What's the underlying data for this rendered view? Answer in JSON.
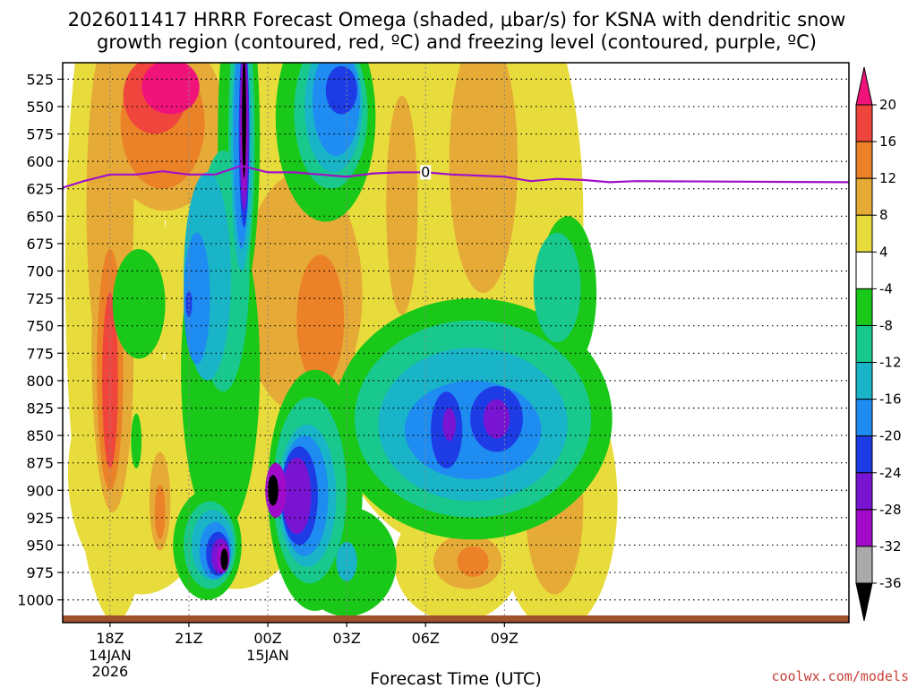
{
  "chart_data": {
    "type": "contour",
    "title_line1": "2026011417 HRRR Forecast Omega (shaded, μbar/s) for KSNA with dendritic snow",
    "title_line2": "growth region (contoured, red, ºC) and freezing level (contoured, purple, ºC)",
    "xlabel": "Forecast Time (UTC)",
    "credit": "coolwx.com/models",
    "x_range_hours": [
      -1.8,
      28.1
    ],
    "y_levels": [
      525,
      550,
      575,
      600,
      625,
      650,
      675,
      700,
      725,
      750,
      775,
      800,
      825,
      850,
      875,
      900,
      925,
      950,
      975,
      1000
    ],
    "y_range": [
      510,
      1015
    ],
    "x_ticks": [
      {
        "hour": 0,
        "label": "18Z",
        "sub1": "14JAN",
        "sub2": "2026"
      },
      {
        "hour": 3,
        "label": "21Z",
        "sub1": "",
        "sub2": ""
      },
      {
        "hour": 6,
        "label": "00Z",
        "sub1": "15JAN",
        "sub2": ""
      },
      {
        "hour": 9,
        "label": "03Z",
        "sub1": "",
        "sub2": ""
      },
      {
        "hour": 12,
        "label": "06Z",
        "sub1": "",
        "sub2": ""
      },
      {
        "hour": 15,
        "label": "09Z",
        "sub1": "",
        "sub2": ""
      }
    ],
    "colorbar": {
      "levels": [
        20,
        16,
        12,
        8,
        4,
        -4,
        -8,
        -12,
        -16,
        -20,
        -24,
        -28,
        -32,
        -36
      ],
      "colors": [
        "#f0147a",
        "#f0453c",
        "#eb8228",
        "#e6aa37",
        "#e8dc3c",
        "#ffffff",
        "#19c819",
        "#19c88c",
        "#19b4c8",
        "#1e8cf0",
        "#1e3ce6",
        "#7814d2",
        "#a00ac8",
        "#aaaaaa",
        "#000000"
      ]
    },
    "freezing_level": {
      "label": "0",
      "label_hour": 12,
      "points": [
        [
          -1.8,
          624
        ],
        [
          -1.0,
          618
        ],
        [
          0,
          612
        ],
        [
          1,
          612
        ],
        [
          2,
          609
        ],
        [
          3,
          612
        ],
        [
          4,
          612
        ],
        [
          5,
          604
        ],
        [
          6,
          610
        ],
        [
          7,
          610
        ],
        [
          8,
          612
        ],
        [
          9,
          614
        ],
        [
          10,
          611
        ],
        [
          11,
          610
        ],
        [
          12,
          610
        ],
        [
          13,
          612
        ],
        [
          14,
          613
        ],
        [
          15,
          614
        ],
        [
          16,
          618
        ],
        [
          17,
          616
        ],
        [
          18,
          617
        ],
        [
          19,
          619
        ],
        [
          20,
          618
        ],
        [
          28.1,
          619
        ]
      ]
    },
    "fields": [
      {
        "omega": 4,
        "hour": 0.2,
        "p": 700,
        "rh": 1.9,
        "rp": 320
      },
      {
        "omega": 4,
        "hour": 2.5,
        "p": 560,
        "rh": 3.4,
        "rp": 95
      },
      {
        "omega": 4,
        "hour": 6.4,
        "p": 720,
        "rh": 4.5,
        "rp": 210
      },
      {
        "omega": 4,
        "hour": 12.5,
        "p": 650,
        "rh": 5.5,
        "rp": 300
      },
      {
        "omega": 4,
        "hour": 1.2,
        "p": 885,
        "rh": 2.8,
        "rp": 110
      },
      {
        "omega": 4,
        "hour": 4.8,
        "p": 880,
        "rh": 3.0,
        "rp": 110
      },
      {
        "omega": 4,
        "hour": 17.0,
        "p": 910,
        "rh": 2.3,
        "rp": 120
      },
      {
        "omega": 4,
        "hour": 13.2,
        "p": 965,
        "rh": 2.4,
        "rp": 55
      },
      {
        "omega": 4,
        "hour": 8.5,
        "p": 560,
        "rh": 6.0,
        "rp": 120
      },
      {
        "omega": 8,
        "hour": 0.0,
        "p": 640,
        "rh": 0.9,
        "rp": 160
      },
      {
        "omega": 8,
        "hour": 0.1,
        "p": 770,
        "rh": 0.8,
        "rp": 150
      },
      {
        "omega": 8,
        "hour": 2.1,
        "p": 565,
        "rh": 2.3,
        "rp": 80
      },
      {
        "omega": 8,
        "hour": 7.3,
        "p": 720,
        "rh": 2.3,
        "rp": 110
      },
      {
        "omega": 8,
        "hour": 14.2,
        "p": 600,
        "rh": 1.3,
        "rp": 120
      },
      {
        "omega": 8,
        "hour": 11.1,
        "p": 640,
        "rh": 0.6,
        "rp": 100
      },
      {
        "omega": 8,
        "hour": 1.9,
        "p": 910,
        "rh": 0.4,
        "rp": 45
      },
      {
        "omega": 8,
        "hour": 4.8,
        "p": 795,
        "rh": 0.4,
        "rp": 60
      },
      {
        "omega": 8,
        "hour": 13.6,
        "p": 965,
        "rh": 1.3,
        "rp": 25
      },
      {
        "omega": 8,
        "hour": 16.9,
        "p": 915,
        "rh": 1.1,
        "rp": 80
      },
      {
        "omega": 12,
        "hour": 0.0,
        "p": 790,
        "rh": 0.5,
        "rp": 110
      },
      {
        "omega": 12,
        "hour": 2.0,
        "p": 565,
        "rh": 1.6,
        "rp": 60
      },
      {
        "omega": 12,
        "hour": 8.0,
        "p": 745,
        "rh": 0.9,
        "rp": 60
      },
      {
        "omega": 12,
        "hour": 1.9,
        "p": 920,
        "rh": 0.2,
        "rp": 25
      },
      {
        "omega": 12,
        "hour": 13.8,
        "p": 965,
        "rh": 0.6,
        "rp": 14
      },
      {
        "omega": 16,
        "hour": 0.0,
        "p": 800,
        "rh": 0.3,
        "rp": 80
      },
      {
        "omega": 16,
        "hour": 1.7,
        "p": 540,
        "rh": 1.2,
        "rp": 35
      },
      {
        "omega": 20,
        "hour": 2.3,
        "p": 532,
        "rh": 1.1,
        "rp": 25
      },
      {
        "omega": -8,
        "hour": 4.2,
        "p": 790,
        "rh": 1.5,
        "rp": 150
      },
      {
        "omega": -8,
        "hour": 4.9,
        "p": 580,
        "rh": 0.8,
        "rp": 150
      },
      {
        "omega": -8,
        "hour": 8.2,
        "p": 560,
        "rh": 1.9,
        "rp": 95
      },
      {
        "omega": -8,
        "hour": 7.8,
        "p": 900,
        "rh": 1.8,
        "rp": 110
      },
      {
        "omega": -8,
        "hour": 3.7,
        "p": 950,
        "rh": 1.3,
        "rp": 50
      },
      {
        "omega": -8,
        "hour": 9.0,
        "p": 965,
        "rh": 1.9,
        "rp": 50
      },
      {
        "omega": -8,
        "hour": 13.8,
        "p": 835,
        "rh": 5.3,
        "rp": 110
      },
      {
        "omega": -8,
        "hour": 17.4,
        "p": 720,
        "rh": 1.1,
        "rp": 70
      },
      {
        "omega": -8,
        "hour": 1.1,
        "p": 730,
        "rh": 1.0,
        "rp": 50
      },
      {
        "omega": -8,
        "hour": 1.0,
        "p": 855,
        "rh": 0.2,
        "rp": 25
      },
      {
        "omega": -12,
        "hour": 4.3,
        "p": 700,
        "rh": 1.0,
        "rp": 110
      },
      {
        "omega": -12,
        "hour": 5.0,
        "p": 580,
        "rh": 0.5,
        "rp": 130
      },
      {
        "omega": -12,
        "hour": 8.4,
        "p": 555,
        "rh": 1.4,
        "rp": 70
      },
      {
        "omega": -12,
        "hour": 7.6,
        "p": 900,
        "rh": 1.4,
        "rp": 85
      },
      {
        "omega": -12,
        "hour": 3.8,
        "p": 950,
        "rh": 1.0,
        "rp": 40
      },
      {
        "omega": -12,
        "hour": 13.8,
        "p": 835,
        "rh": 4.5,
        "rp": 90
      },
      {
        "omega": -12,
        "hour": 17.0,
        "p": 715,
        "rh": 0.9,
        "rp": 50
      },
      {
        "omega": -16,
        "hour": 3.7,
        "p": 705,
        "rh": 0.9,
        "rp": 95
      },
      {
        "omega": -16,
        "hour": 5.0,
        "p": 590,
        "rh": 0.4,
        "rp": 110
      },
      {
        "omega": -16,
        "hour": 8.5,
        "p": 550,
        "rh": 1.1,
        "rp": 60
      },
      {
        "omega": -16,
        "hour": 7.5,
        "p": 905,
        "rh": 1.1,
        "rp": 65
      },
      {
        "omega": -16,
        "hour": 3.9,
        "p": 950,
        "rh": 0.8,
        "rp": 32
      },
      {
        "omega": -16,
        "hour": 9.0,
        "p": 965,
        "rh": 0.4,
        "rp": 18
      },
      {
        "omega": -16,
        "hour": 13.8,
        "p": 840,
        "rh": 3.6,
        "rp": 70
      },
      {
        "omega": -20,
        "hour": 3.3,
        "p": 725,
        "rh": 0.5,
        "rp": 60
      },
      {
        "omega": -20,
        "hour": 5.0,
        "p": 580,
        "rh": 0.3,
        "rp": 100
      },
      {
        "omega": -20,
        "hour": 8.6,
        "p": 545,
        "rh": 0.9,
        "rp": 50
      },
      {
        "omega": -20,
        "hour": 7.4,
        "p": 905,
        "rh": 0.9,
        "rp": 55
      },
      {
        "omega": -20,
        "hour": 4.0,
        "p": 955,
        "rh": 0.6,
        "rp": 26
      },
      {
        "omega": -20,
        "hour": 13.8,
        "p": 845,
        "rh": 2.6,
        "rp": 45
      },
      {
        "omega": -24,
        "hour": 3.0,
        "p": 730,
        "rh": 0.12,
        "rp": 12
      },
      {
        "omega": -24,
        "hour": 5.1,
        "p": 575,
        "rh": 0.2,
        "rp": 85
      },
      {
        "omega": -24,
        "hour": 8.8,
        "p": 535,
        "rh": 0.6,
        "rp": 22
      },
      {
        "omega": -24,
        "hour": 7.2,
        "p": 905,
        "rh": 0.7,
        "rp": 45
      },
      {
        "omega": -24,
        "hour": 4.1,
        "p": 958,
        "rh": 0.45,
        "rp": 20
      },
      {
        "omega": -24,
        "hour": 12.8,
        "p": 845,
        "rh": 0.6,
        "rp": 35
      },
      {
        "omega": -24,
        "hour": 14.7,
        "p": 835,
        "rh": 1.0,
        "rp": 30
      },
      {
        "omega": -28,
        "hour": 5.1,
        "p": 570,
        "rh": 0.17,
        "rp": 75
      },
      {
        "omega": -28,
        "hour": 7.1,
        "p": 905,
        "rh": 0.55,
        "rp": 35
      },
      {
        "omega": -28,
        "hour": 4.2,
        "p": 960,
        "rh": 0.35,
        "rp": 16
      },
      {
        "omega": -28,
        "hour": 12.9,
        "p": 840,
        "rh": 0.25,
        "rp": 15
      },
      {
        "omega": -28,
        "hour": 14.7,
        "p": 835,
        "rh": 0.5,
        "rp": 18
      },
      {
        "omega": -32,
        "hour": 5.1,
        "p": 565,
        "rh": 0.12,
        "rp": 65
      },
      {
        "omega": -32,
        "hour": 6.3,
        "p": 900,
        "rh": 0.4,
        "rp": 25
      },
      {
        "omega": -32,
        "hour": 4.3,
        "p": 962,
        "rh": 0.25,
        "rp": 13
      },
      {
        "omega": -36,
        "hour": 5.1,
        "p": 560,
        "rh": 0.08,
        "rp": 55
      },
      {
        "omega": -36,
        "hour": 6.2,
        "p": 900,
        "rh": 0.2,
        "rp": 14
      },
      {
        "omega": -36,
        "hour": 4.35,
        "p": 963,
        "rh": 0.14,
        "rp": 10
      }
    ]
  }
}
